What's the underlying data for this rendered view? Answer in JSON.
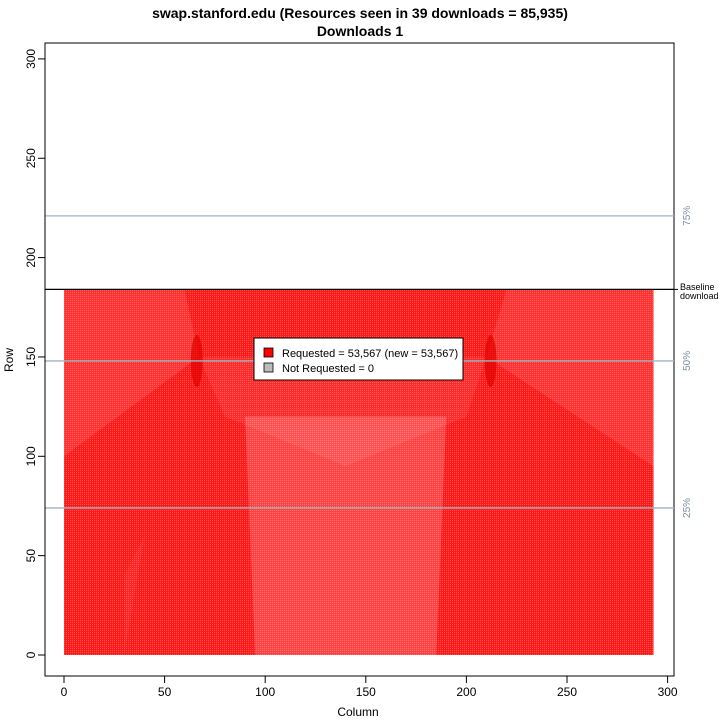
{
  "chart_data": {
    "type": "heatmap",
    "title": "swap.stanford.edu (Resources seen in 39 downloads = 85,935)",
    "subtitle": "Downloads 1",
    "xlabel": "Column",
    "ylabel": "Row",
    "xlim": [
      0,
      300
    ],
    "ylim": [
      0,
      300
    ],
    "x_ticks": [
      0,
      50,
      100,
      150,
      200,
      250,
      300
    ],
    "y_ticks": [
      0,
      50,
      100,
      150,
      200,
      250,
      300
    ],
    "grid_extent": {
      "columns": [
        0,
        293
      ],
      "rows": [
        0,
        184
      ]
    },
    "baseline_row": 184,
    "baseline_label": [
      "Baseline",
      "download"
    ],
    "reference_lines": [
      {
        "row": 74,
        "label": "25%"
      },
      {
        "row": 148,
        "label": "50%"
      },
      {
        "row": 221,
        "label": "75%"
      }
    ],
    "legend": {
      "position": "center",
      "entries": [
        {
          "label": "Requested = 53,567 (new = 53,567)",
          "color": "#ff0000"
        },
        {
          "label": "Not Requested = 0",
          "color": "#bbbbbb"
        }
      ]
    },
    "colors": {
      "requested": "#ff0000",
      "not_requested": "#bbbbbb",
      "reference_line": "#a0b4c0",
      "pct_label": "#7a8ea0"
    }
  }
}
